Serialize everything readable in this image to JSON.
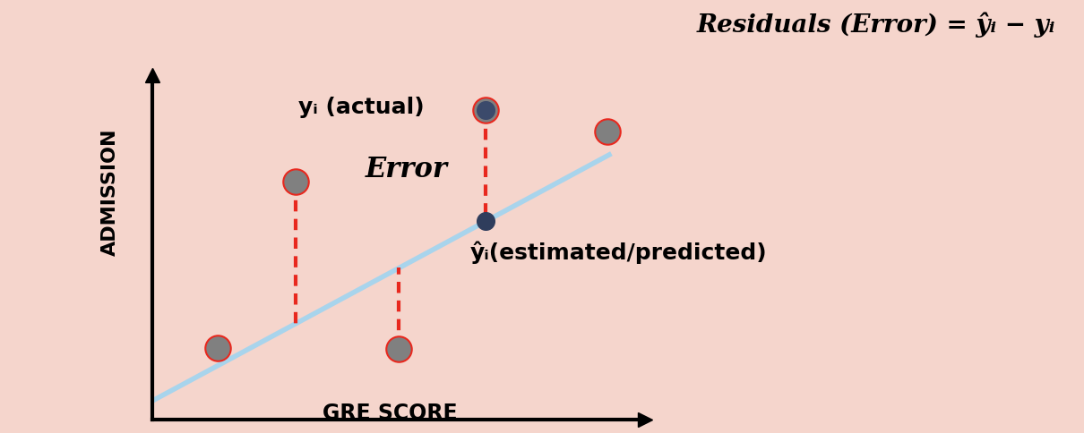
{
  "chart_data": {
    "type": "scatter",
    "xlabel": "GRE SCORE",
    "ylabel": "ADMISSION",
    "x": [
      73,
      160,
      275,
      372,
      508
    ],
    "values": [
      80,
      266,
      79,
      346,
      322
    ],
    "predicted": [
      null,
      107,
      170,
      222,
      null
    ],
    "fit_line": {
      "x": [
        2,
        510
      ],
      "y": [
        22,
        296
      ]
    },
    "xlim": [
      0,
      550
    ],
    "ylim": [
      0,
      385
    ],
    "tick_labels": false,
    "color": "#808080",
    "annotations": {
      "formula": "Residuals (Error) = ŷᵢ − yᵢ",
      "actual": "yᵢ (actual)",
      "error": "Error",
      "predicted": "ŷᵢ(estimated/predicted)"
    }
  }
}
